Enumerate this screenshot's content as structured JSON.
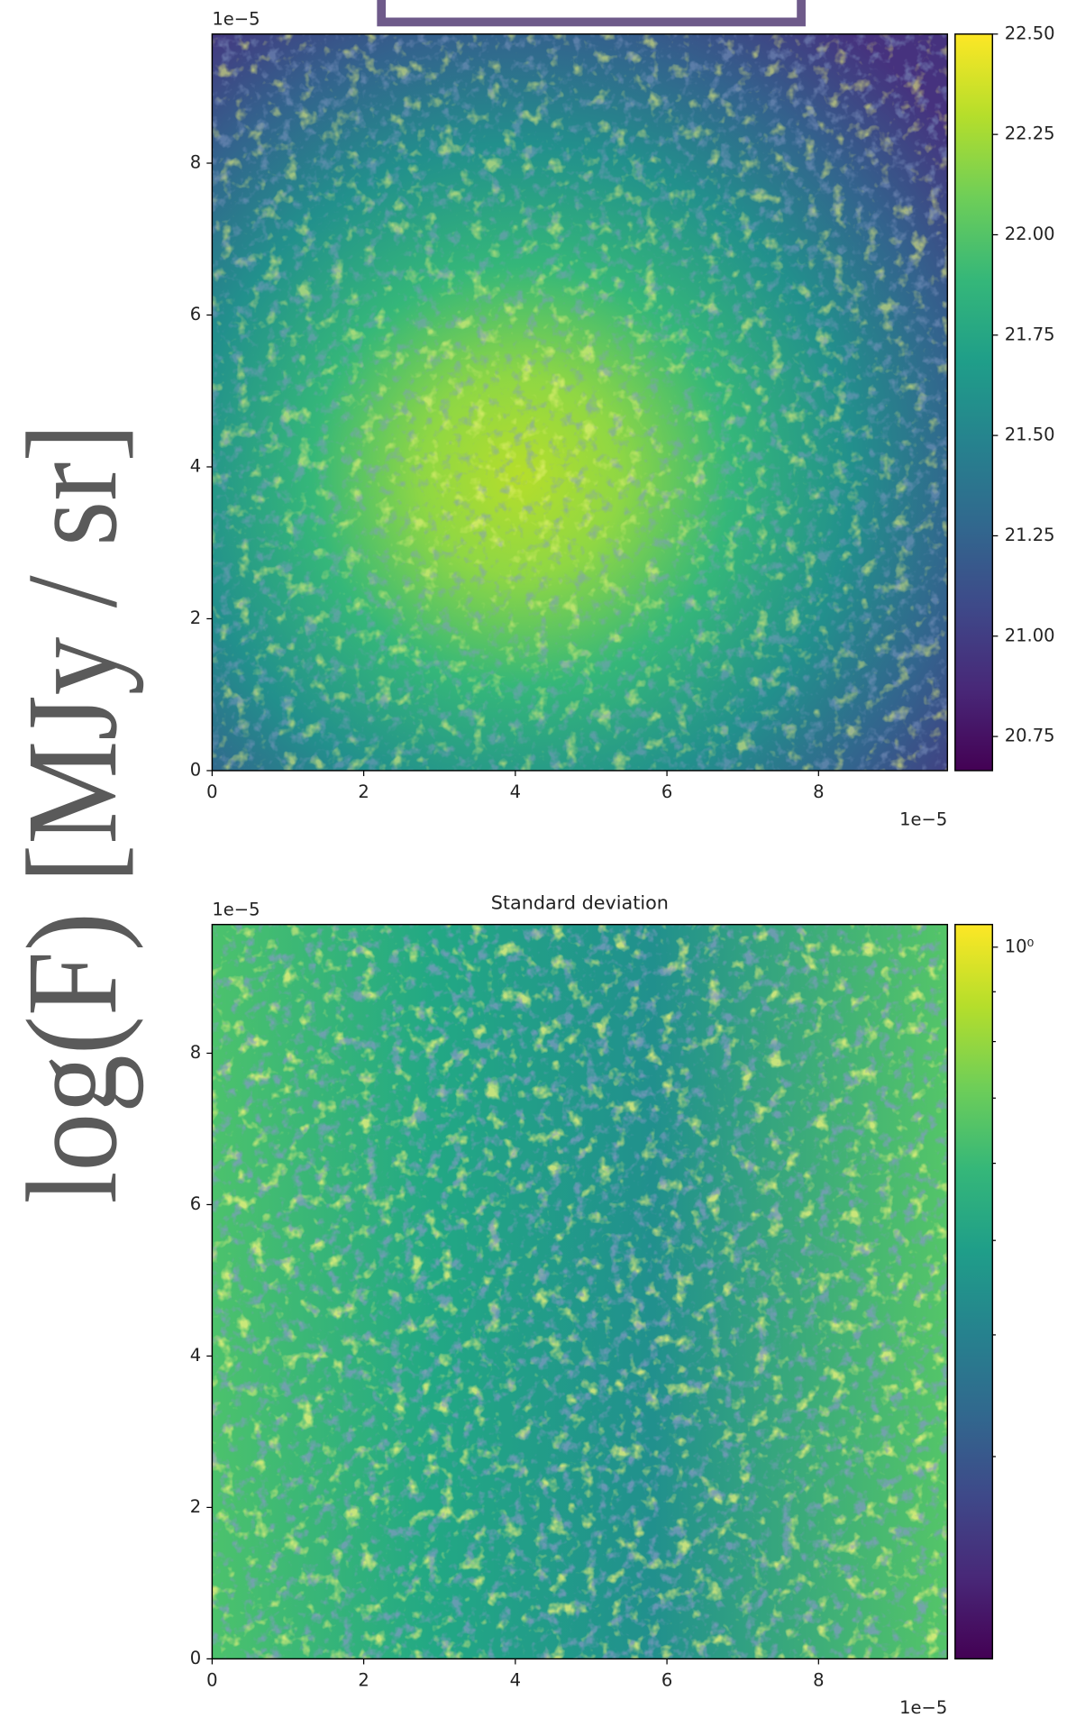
{
  "figure_label": "log(F) [MJy / sr]",
  "chart_data": [
    {
      "type": "heatmap",
      "x_offset_label": "1e−5",
      "y_offset_label": "1e−5",
      "xlim": [
        0,
        9.7
      ],
      "ylim": [
        0,
        9.7
      ],
      "xticks": [
        0,
        2,
        4,
        6,
        8
      ],
      "yticks": [
        0,
        2,
        4,
        6,
        8
      ],
      "colorbar": {
        "scale": "linear",
        "lim": [
          20.665,
          22.5
        ],
        "ticks": [
          {
            "value": 20.75,
            "label": "20.75"
          },
          {
            "value": 21,
            "label": "21.00"
          },
          {
            "value": 21.25,
            "label": "21.25"
          },
          {
            "value": 21.5,
            "label": "21.50"
          },
          {
            "value": 21.75,
            "label": "21.75"
          },
          {
            "value": 22,
            "label": "22.00"
          },
          {
            "value": 22.25,
            "label": "22.25"
          },
          {
            "value": 22.5,
            "label": "22.50"
          }
        ],
        "colormap": [
          "#440154",
          "#482878",
          "#3e4989",
          "#31688e",
          "#26828e",
          "#1f9e89",
          "#35b779",
          "#6ece58",
          "#b5de2b",
          "#fde725"
        ]
      }
    },
    {
      "type": "heatmap",
      "title": "Standard deviation",
      "x_offset_label": "1e−5",
      "y_offset_label": "1e−5",
      "xlim": [
        0,
        9.7
      ],
      "ylim": [
        0,
        9.7
      ],
      "xticks": [
        0,
        2,
        4,
        6,
        8
      ],
      "yticks": [
        0,
        2,
        4,
        6,
        8
      ],
      "colorbar": {
        "scale": "log",
        "lim": [
          0.186,
          1.055
        ],
        "ticks": [
          {
            "value": 1,
            "label": "10⁰"
          }
        ],
        "minor_ticks": [
          0.3,
          0.4,
          0.5,
          0.6,
          0.7,
          0.8,
          0.9
        ],
        "colormap": [
          "#440154",
          "#482878",
          "#3e4989",
          "#31688e",
          "#26828e",
          "#1f9e89",
          "#35b779",
          "#6ece58",
          "#b5de2b",
          "#fde725"
        ]
      }
    }
  ]
}
